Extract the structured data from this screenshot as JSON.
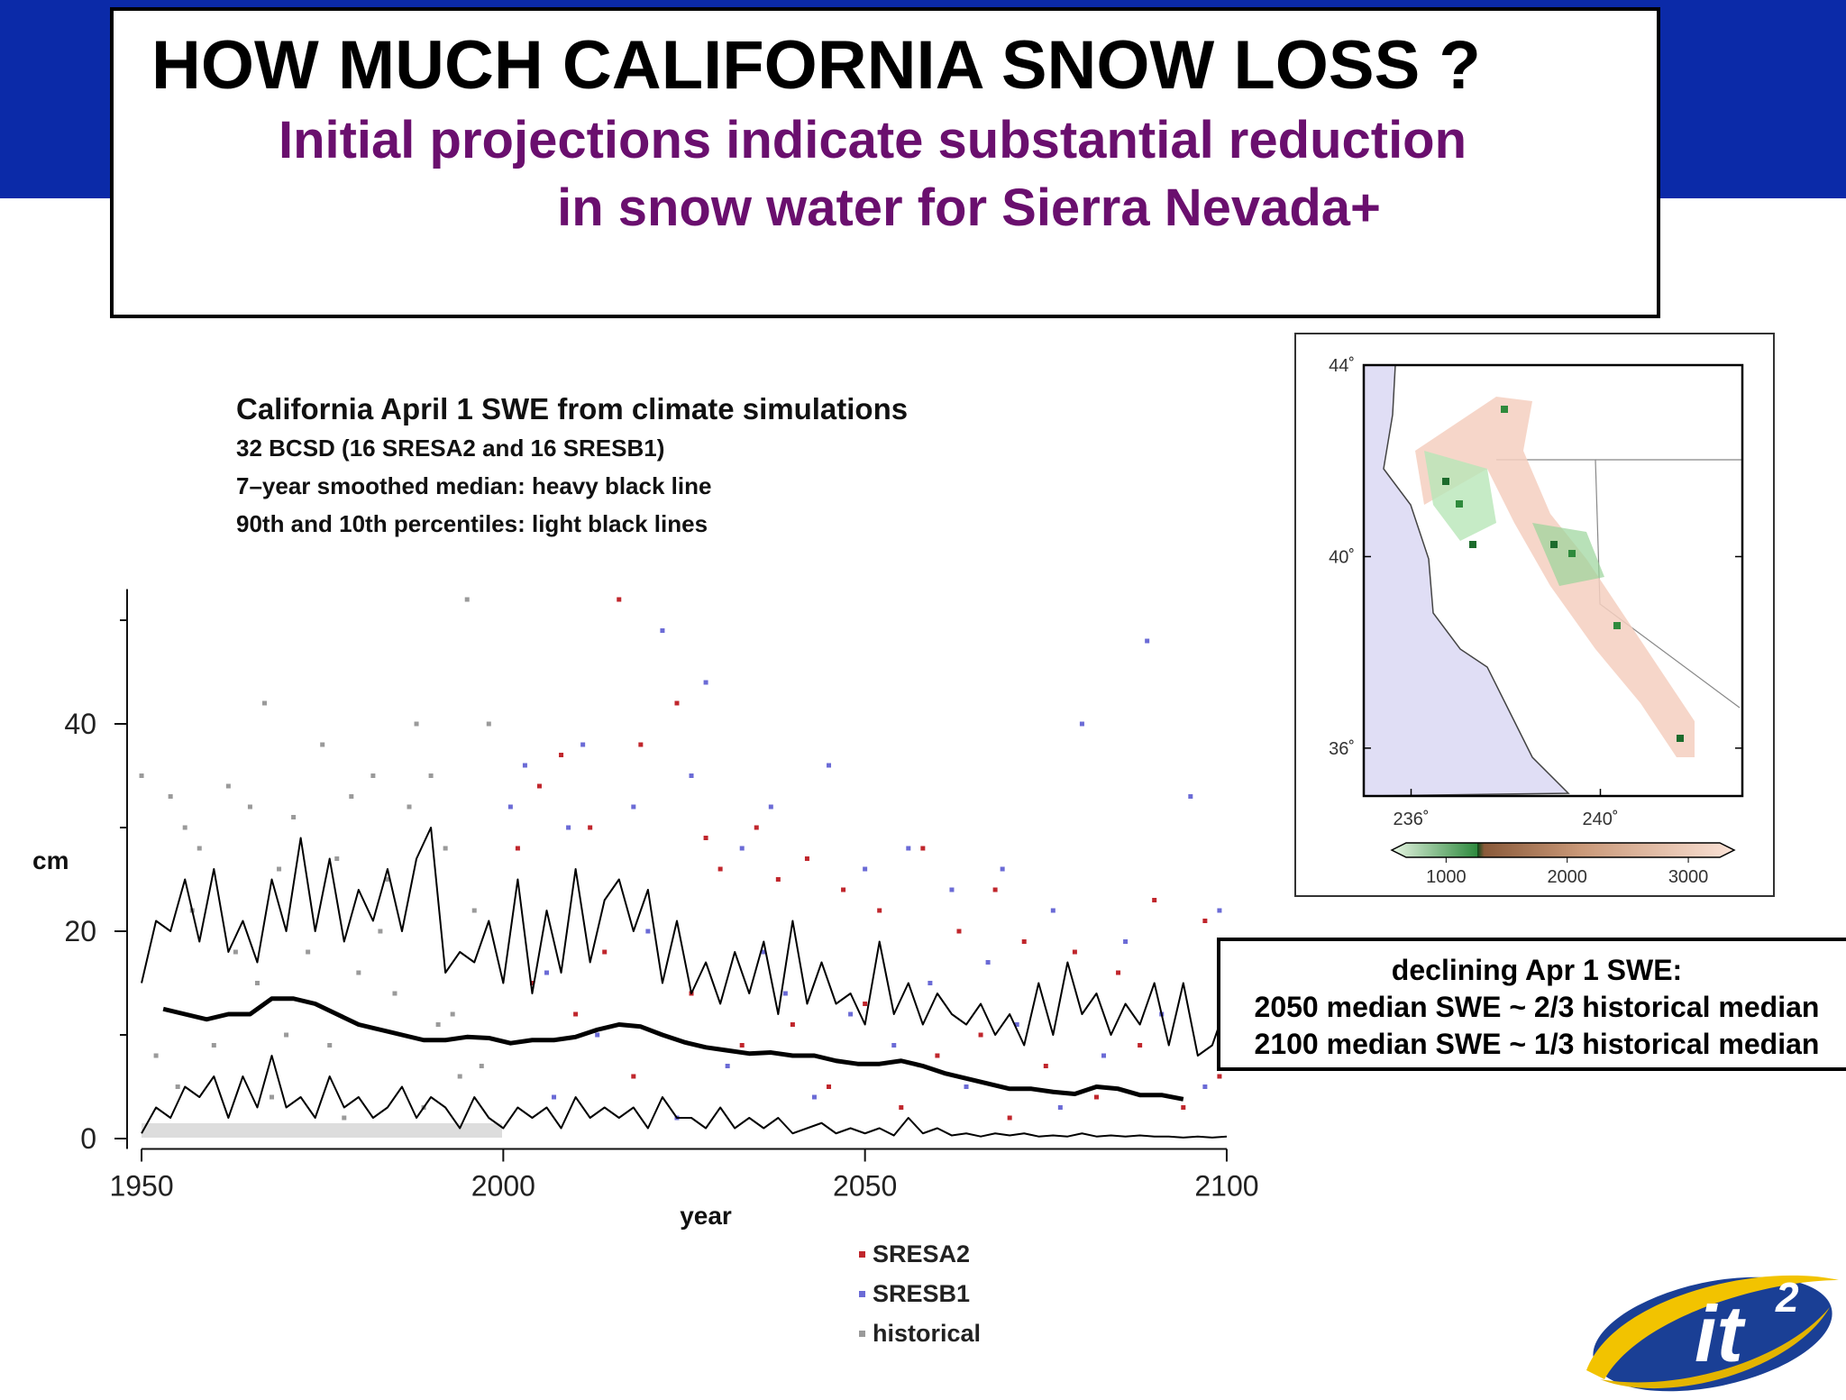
{
  "header": {
    "title": "HOW MUCH CALIFORNIA SNOW LOSS ?",
    "subtitle": [
      "Initial projections indicate substantial reduction",
      "in snow water for Sierra Nevada+"
    ]
  },
  "chart_data": [
    {
      "type": "scatter",
      "title": "California  April 1 SWE from climate simulations",
      "notes": [
        "32 BCSD (16 SRESA2 and 16 SRESB1)",
        "7–year smoothed median: heavy black line",
        "90th and 10th percentiles: light black lines"
      ],
      "xlabel": "year",
      "ylabel": "cm",
      "xlim": [
        1948,
        2102
      ],
      "ylim": [
        -1,
        53
      ],
      "xticks": [
        1950,
        2000,
        2050,
        2100
      ],
      "yticks": [
        0,
        20,
        40
      ],
      "yminorticks": [
        10,
        30,
        50
      ],
      "series": [
        {
          "name": "SRESA2",
          "color": "#c0262c",
          "x": [
            2002,
            2005,
            2008,
            2012,
            2016,
            2019,
            2024,
            2028,
            2030,
            2035,
            2038,
            2042,
            2047,
            2052,
            2058,
            2063,
            2068,
            2072,
            2079,
            2085,
            2090,
            2097,
            2004,
            2010,
            2018,
            2026,
            2033,
            2040,
            2045,
            2050,
            2055,
            2060,
            2066,
            2070,
            2075,
            2082,
            2088,
            2094,
            2099,
            2014
          ],
          "values": [
            28,
            34,
            37,
            30,
            52,
            38,
            42,
            29,
            26,
            30,
            25,
            27,
            24,
            22,
            28,
            20,
            24,
            19,
            18,
            16,
            23,
            21,
            15,
            12,
            6,
            14,
            9,
            11,
            5,
            13,
            3,
            8,
            10,
            2,
            7,
            4,
            9,
            3,
            6,
            18
          ]
        },
        {
          "name": "SRESB1",
          "color": "#6b6bd6",
          "x": [
            2001,
            2003,
            2009,
            2011,
            2018,
            2022,
            2026,
            2028,
            2033,
            2037,
            2045,
            2050,
            2056,
            2062,
            2069,
            2076,
            2080,
            2086,
            2089,
            2095,
            2099,
            2006,
            2013,
            2020,
            2031,
            2039,
            2043,
            2048,
            2054,
            2059,
            2064,
            2071,
            2077,
            2083,
            2091,
            2097,
            2007,
            2024,
            2036,
            2067
          ],
          "values": [
            32,
            36,
            30,
            38,
            32,
            49,
            35,
            44,
            28,
            32,
            36,
            26,
            28,
            24,
            26,
            22,
            40,
            19,
            48,
            33,
            22,
            16,
            10,
            20,
            7,
            14,
            4,
            12,
            9,
            15,
            5,
            11,
            3,
            8,
            12,
            5,
            4,
            2,
            18,
            17
          ]
        },
        {
          "name": "historical",
          "color": "#9a9a9a",
          "x": [
            1950,
            1954,
            1956,
            1958,
            1962,
            1965,
            1967,
            1969,
            1971,
            1975,
            1977,
            1979,
            1982,
            1984,
            1987,
            1988,
            1990,
            1992,
            1995,
            1996,
            1998,
            1952,
            1960,
            1966,
            1973,
            1980,
            1985,
            1993,
            1997,
            1957,
            1963,
            1970,
            1976,
            1983,
            1991,
            1955,
            1968,
            1978,
            1989,
            1994
          ],
          "values": [
            35,
            33,
            30,
            28,
            34,
            32,
            42,
            26,
            31,
            38,
            27,
            33,
            35,
            25,
            32,
            40,
            35,
            28,
            52,
            22,
            40,
            8,
            9,
            15,
            18,
            16,
            14,
            12,
            7,
            22,
            18,
            10,
            9,
            20,
            11,
            5,
            4,
            2,
            3,
            6
          ]
        }
      ],
      "lines": [
        {
          "x": [
            1953,
            1956,
            1959,
            1962,
            1965,
            1968,
            1971,
            1974,
            1977,
            1980,
            1983,
            1986,
            1989,
            1992,
            1995,
            1998,
            2001,
            2004,
            2007,
            2010,
            2013,
            2016,
            2019,
            2022,
            2025,
            2028,
            2031,
            2034,
            2037,
            2040,
            2043,
            2046,
            2049,
            2052,
            2055,
            2058,
            2061,
            2064,
            2067,
            2070,
            2073,
            2076,
            2079,
            2082,
            2085,
            2088,
            2091,
            2094
          ],
          "values": [
            12.5,
            12,
            11.5,
            12,
            12,
            13.5,
            13.5,
            13,
            12,
            11,
            10.5,
            10,
            9.5,
            9.5,
            9.8,
            9.7,
            9.2,
            9.5,
            9.5,
            9.8,
            10.5,
            11,
            10.8,
            10,
            9.3,
            8.8,
            8.5,
            8.2,
            8.3,
            8,
            8,
            7.5,
            7.2,
            7.2,
            7.5,
            7,
            6.3,
            5.8,
            5.3,
            4.8,
            4.8,
            4.5,
            4.3,
            5,
            4.8,
            4.2,
            4.2,
            3.8
          ]
        },
        {
          "x": [
            1950,
            1952,
            1954,
            1956,
            1958,
            1960,
            1962,
            1964,
            1966,
            1968,
            1970,
            1972,
            1974,
            1976,
            1978,
            1980,
            1982,
            1984,
            1986,
            1988,
            1990,
            1992,
            1994,
            1996,
            1998,
            2000,
            2002,
            2004,
            2006,
            2008,
            2010,
            2012,
            2014,
            2016,
            2018,
            2020,
            2022,
            2024,
            2026,
            2028,
            2030,
            2032,
            2034,
            2036,
            2038,
            2040,
            2042,
            2044,
            2046,
            2048,
            2050,
            2052,
            2054,
            2056,
            2058,
            2060,
            2062,
            2064,
            2066,
            2068,
            2070,
            2072,
            2074,
            2076,
            2078,
            2080,
            2082,
            2084,
            2086,
            2088,
            2090,
            2092,
            2094,
            2096,
            2098,
            2100
          ],
          "values": [
            15,
            21,
            20,
            25,
            19,
            26,
            18,
            21,
            17,
            25,
            20,
            29,
            20,
            27,
            19,
            24,
            21,
            26,
            20,
            27,
            30,
            16,
            18,
            17,
            21,
            15,
            25,
            14,
            22,
            16,
            26,
            17,
            23,
            25,
            20,
            24,
            15,
            21,
            14,
            17,
            13,
            18,
            14,
            19,
            12,
            21,
            13,
            17,
            13,
            14,
            11,
            19,
            12,
            15,
            11,
            14,
            12,
            11,
            13,
            10,
            12,
            9,
            15,
            10,
            17,
            12,
            14,
            10,
            13,
            11,
            15,
            9,
            15,
            8,
            9,
            13
          ]
        },
        {
          "x": [
            1950,
            1952,
            1954,
            1956,
            1958,
            1960,
            1962,
            1964,
            1966,
            1968,
            1970,
            1972,
            1974,
            1976,
            1978,
            1980,
            1982,
            1984,
            1986,
            1988,
            1990,
            1992,
            1994,
            1996,
            1998,
            2000,
            2002,
            2004,
            2006,
            2008,
            2010,
            2012,
            2014,
            2016,
            2018,
            2020,
            2022,
            2024,
            2026,
            2028,
            2030,
            2032,
            2034,
            2036,
            2038,
            2040,
            2042,
            2044,
            2046,
            2048,
            2050,
            2052,
            2054,
            2056,
            2058,
            2060,
            2062,
            2064,
            2066,
            2068,
            2070,
            2072,
            2074,
            2076,
            2078,
            2080,
            2082,
            2084,
            2086,
            2088,
            2090,
            2092,
            2094,
            2096,
            2098,
            2100
          ],
          "values": [
            0.5,
            3,
            2,
            5,
            4,
            6,
            2,
            6,
            3,
            8,
            3,
            4,
            2,
            6,
            3,
            4,
            2,
            3,
            5,
            2,
            4,
            3,
            1,
            4,
            2,
            1,
            3,
            2,
            3,
            1,
            4,
            2,
            3,
            2,
            3,
            1,
            4,
            2,
            2,
            1,
            3,
            1,
            2,
            1,
            2,
            0.5,
            1,
            1.5,
            0.5,
            1,
            0.5,
            1,
            0.3,
            2,
            0.5,
            1,
            0.3,
            0.5,
            0.2,
            0.5,
            0.3,
            0.5,
            0.2,
            0.3,
            0.2,
            0.5,
            0.2,
            0.3,
            0.2,
            0.3,
            0.2,
            0.2,
            0.1,
            0.2,
            0.1,
            0.2
          ]
        }
      ],
      "annotation": [
        "declining Apr 1 SWE:",
        "2050 median SWE ~ 2/3 historical median",
        "2100 median SWE ~ 1/3 historical median"
      ]
    },
    {
      "type": "map",
      "xlim": [
        235,
        243
      ],
      "ylim": [
        35,
        44
      ],
      "xticks": [
        {
          "value": 236,
          "label": "236˚"
        },
        {
          "value": 240,
          "label": "240˚"
        }
      ],
      "yticks": [
        {
          "value": 44,
          "label": "44˚"
        },
        {
          "value": 40,
          "label": "40˚"
        },
        {
          "value": 36,
          "label": "36˚"
        }
      ],
      "clim": [
        670,
        3260
      ],
      "cticks": [
        1000,
        2000,
        3000
      ]
    }
  ],
  "logo": {
    "text": "it",
    "superscript": "2"
  }
}
